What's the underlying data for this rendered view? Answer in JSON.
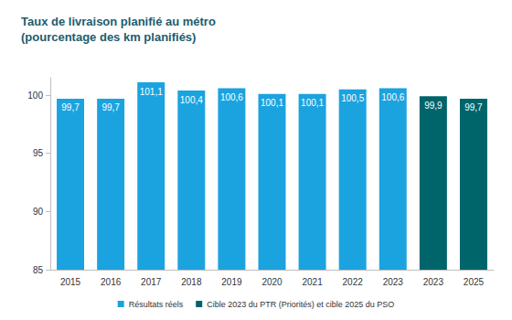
{
  "chart_data": {
    "type": "bar",
    "title": "Taux de livraison planifié au métro\n(pourcentage des km planifiés)",
    "categories": [
      "2015",
      "2016",
      "2017",
      "2018",
      "2019",
      "2020",
      "2021",
      "2022",
      "2023",
      "2023",
      "2025"
    ],
    "series": [
      {
        "name": "Résultats réels",
        "color": "#1ba3e0",
        "values": [
          99.7,
          99.7,
          101.1,
          100.4,
          100.6,
          100.1,
          100.1,
          100.5,
          100.6,
          null,
          null
        ],
        "value_labels": [
          "99,7",
          "99,7",
          "101,1",
          "100,4",
          "100,6",
          "100,1",
          "100,1",
          "100,5",
          "100,6",
          null,
          null
        ]
      },
      {
        "name": "Cible 2023 du PTR (Priorités) et cible 2025 du PSO",
        "color": "#00646b",
        "values": [
          null,
          null,
          null,
          null,
          null,
          null,
          null,
          null,
          null,
          99.9,
          99.7
        ],
        "value_labels": [
          null,
          null,
          null,
          null,
          null,
          null,
          null,
          null,
          null,
          "99,9",
          "99,7"
        ]
      }
    ],
    "ylim": [
      85,
      101.5
    ],
    "yticks": [
      85,
      90,
      95,
      100
    ],
    "grid": false,
    "data_labels": true,
    "legend": "bottom"
  }
}
